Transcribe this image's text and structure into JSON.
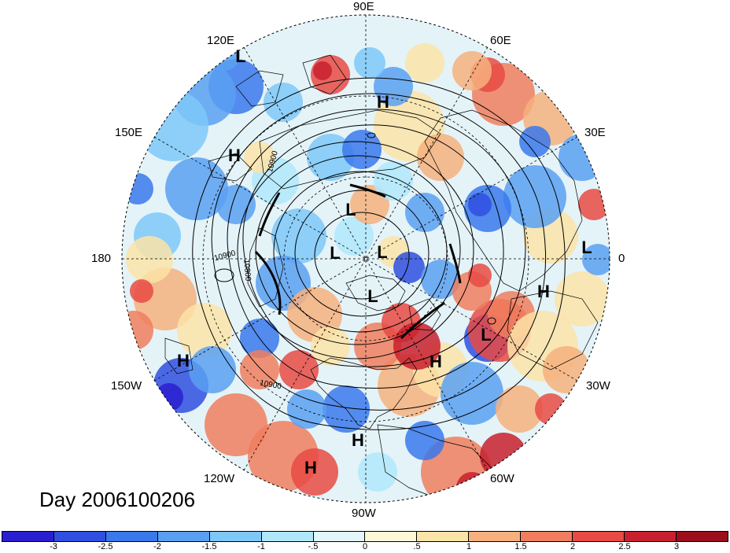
{
  "lon_labels": {
    "e90": "90E",
    "e60": "60E",
    "e30": "30E",
    "zero": "0",
    "w30": "30W",
    "w60": "60W",
    "w90": "90W",
    "w120": "120W",
    "w150": "150W",
    "d180": "180",
    "e150": "150E",
    "e120": "120E"
  },
  "contour_labels": {
    "c10900a": "10900",
    "c10900b": "10900",
    "c10800": "10800",
    "c10900c": "10900"
  },
  "pressure_systems": [
    {
      "type": "L"
    },
    {
      "type": "H"
    },
    {
      "type": "H"
    },
    {
      "type": "L"
    },
    {
      "type": "L"
    },
    {
      "type": "L"
    },
    {
      "type": "L"
    },
    {
      "type": "L"
    },
    {
      "type": "H"
    },
    {
      "type": "L"
    },
    {
      "type": "H"
    },
    {
      "type": "H"
    },
    {
      "type": "H"
    },
    {
      "type": "H"
    }
  ],
  "date_label": "Day 2006100206",
  "colorbar": {
    "colors": [
      "#2a1fd0",
      "#2f4fe0",
      "#3a78ec",
      "#5aa0f2",
      "#7ec8f8",
      "#b0e8fb",
      "#e2f6fc",
      "#fdf7d8",
      "#fce3a8",
      "#f6b07e",
      "#f07e5e",
      "#e84a44",
      "#c8202e",
      "#9c0e1c"
    ],
    "ticks": [
      "-3",
      "-2.5",
      "-2",
      "-1.5",
      "-1",
      "-.5",
      "0",
      ".5",
      "1",
      "1.5",
      "2",
      "2.5",
      "3"
    ]
  }
}
